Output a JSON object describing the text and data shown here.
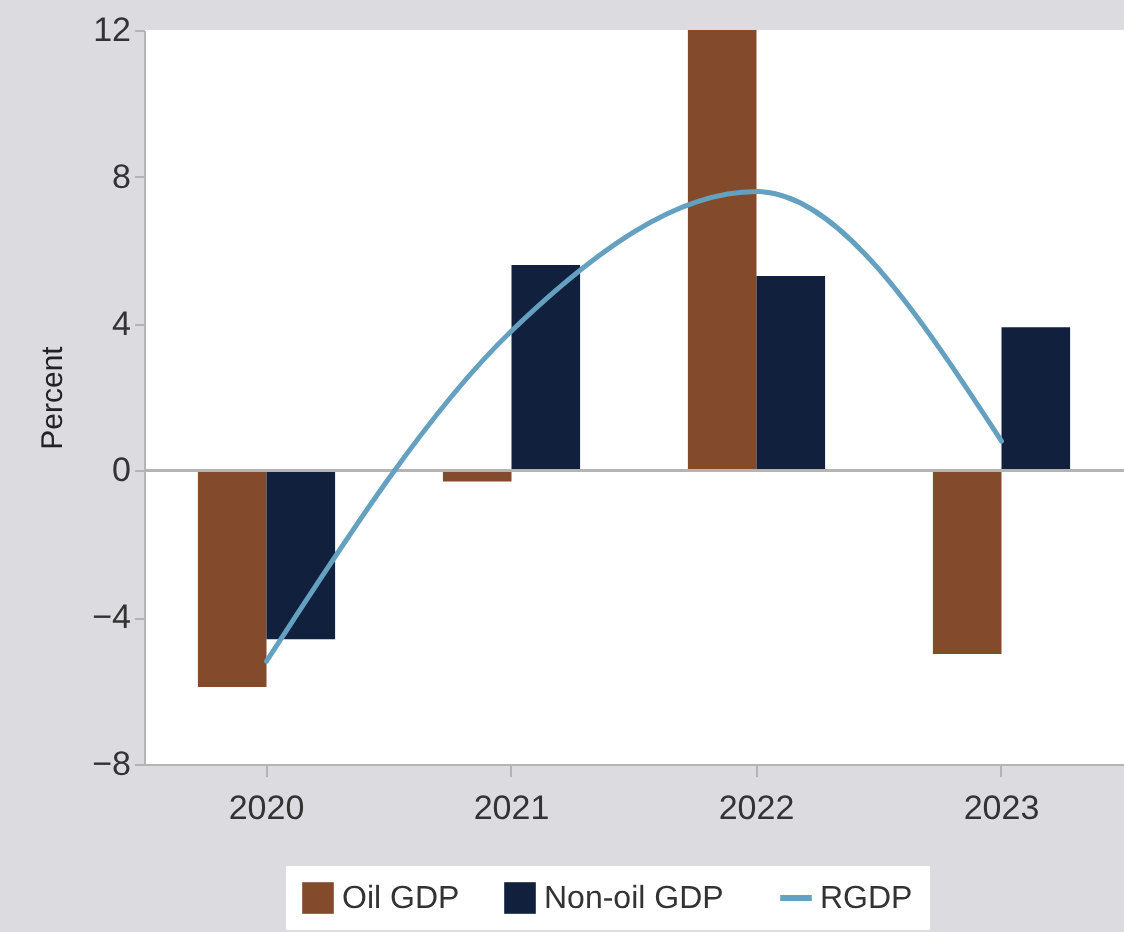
{
  "chart_data": {
    "type": "bar",
    "ylabel": "Percent",
    "categories": [
      "2020",
      "2021",
      "2022",
      "2023"
    ],
    "series": [
      {
        "name": "Oil GDP",
        "color": "#834a2c",
        "values": [
          -5.9,
          -0.3,
          12.0,
          -5.0
        ]
      },
      {
        "name": "Non-oil GDP",
        "color": "#10203d",
        "values": [
          -4.6,
          5.6,
          5.3,
          3.9
        ]
      },
      {
        "name": "RGDP",
        "type": "line",
        "color": "#64a0bf",
        "values": [
          -5.2,
          3.8,
          7.6,
          0.8
        ]
      }
    ],
    "ylim": [
      -8,
      12
    ],
    "yticks": [
      -8,
      -4,
      0,
      4,
      8,
      12
    ],
    "ref_lines": [
      {
        "axis": "y",
        "value": 0,
        "color": "#b4b4b4"
      }
    ],
    "legend": "bottom",
    "grid": false
  }
}
